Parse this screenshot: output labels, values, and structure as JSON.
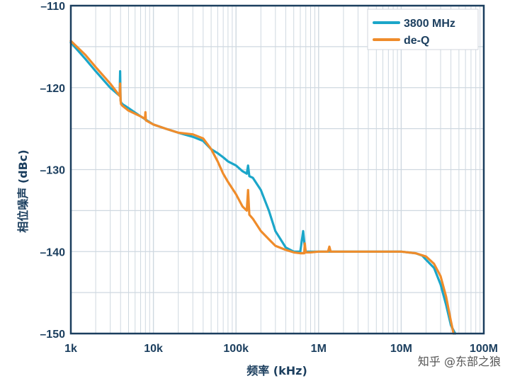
{
  "colors": {
    "series_3800": "#1ba6c9",
    "series_deq": "#ef8c2b",
    "axis_text": "#1b3e5e",
    "grid": "#cfd8e0",
    "frame": "#1b3e5e"
  },
  "watermark": "知乎 @东部之狼",
  "chart_data": {
    "type": "line",
    "xscale": "log",
    "xlim": [
      1000,
      100000000
    ],
    "ylim": [
      -150,
      -110
    ],
    "xlabel": "频率 (kHz)",
    "ylabel": "相位噪声 (dBc)",
    "x_tick_values": [
      1000,
      10000,
      100000,
      1000000,
      10000000,
      100000000
    ],
    "x_tick_labels": [
      "1k",
      "10k",
      "100k",
      "1M",
      "10M",
      "100M"
    ],
    "y_tick_values": [
      -110,
      -120,
      -130,
      -140,
      -150
    ],
    "y_tick_labels": [
      "–110",
      "–120",
      "–130",
      "–140",
      "–150"
    ],
    "grid": true,
    "legend_position": "top-right",
    "series": [
      {
        "name": "3800 MHz",
        "color_key": "series_3800",
        "x": [
          1000,
          1500,
          2000,
          3000,
          3900,
          3950,
          4000,
          4050,
          4200,
          5000,
          7000,
          10000,
          14000,
          20000,
          30000,
          40000,
          50000,
          60000,
          70000,
          80000,
          100000,
          120000,
          135000,
          140000,
          145000,
          160000,
          200000,
          250000,
          300000,
          400000,
          500000,
          600000,
          650000,
          680000,
          700000,
          800000,
          1000000,
          2000000,
          5000000,
          10000000,
          15000000,
          18000000,
          20000000,
          25000000,
          30000000,
          35000000,
          40000000,
          45000000
        ],
        "y": [
          -114.5,
          -116.5,
          -118,
          -120,
          -121,
          -118,
          -121.5,
          -121.8,
          -122,
          -122.5,
          -123.5,
          -124.5,
          -125,
          -125.5,
          -126,
          -126.5,
          -127.5,
          -128,
          -128.5,
          -129,
          -129.5,
          -130.2,
          -130.5,
          -129.5,
          -130.8,
          -131,
          -132.5,
          -135,
          -137.5,
          -139.5,
          -140,
          -140,
          -137.5,
          -139.5,
          -140,
          -140,
          -140,
          -140,
          -140,
          -140,
          -140.2,
          -140.5,
          -141,
          -142,
          -144,
          -146.5,
          -149,
          -150
        ]
      },
      {
        "name": "de-Q",
        "color_key": "series_deq",
        "x": [
          1000,
          1500,
          2000,
          3000,
          3900,
          3950,
          4000,
          4050,
          4200,
          5000,
          7000,
          7900,
          8000,
          8100,
          10000,
          14000,
          20000,
          30000,
          40000,
          50000,
          60000,
          70000,
          80000,
          100000,
          120000,
          135000,
          140000,
          145000,
          160000,
          200000,
          250000,
          300000,
          400000,
          500000,
          600000,
          670000,
          680000,
          700000,
          800000,
          1000000,
          1300000,
          1350000,
          1400000,
          2000000,
          5000000,
          10000000,
          15000000,
          20000000,
          25000000,
          30000000,
          35000000,
          40000000,
          43000000
        ],
        "y": [
          -114.3,
          -116,
          -117.5,
          -119.5,
          -121,
          -119.5,
          -121.5,
          -122,
          -122.2,
          -122.8,
          -123.5,
          -123.8,
          -123,
          -124,
          -124.5,
          -125,
          -125.5,
          -125.7,
          -126.2,
          -127.5,
          -129,
          -130.5,
          -131.5,
          -133,
          -134.5,
          -135,
          -132.5,
          -135.5,
          -136,
          -137.5,
          -138.5,
          -139.3,
          -139.8,
          -140.1,
          -140.2,
          -140.2,
          -139,
          -140.1,
          -140.1,
          -140,
          -140,
          -139.4,
          -140,
          -140,
          -140,
          -140,
          -140.2,
          -140.6,
          -141.5,
          -143,
          -145.5,
          -148.5,
          -150
        ]
      }
    ]
  }
}
